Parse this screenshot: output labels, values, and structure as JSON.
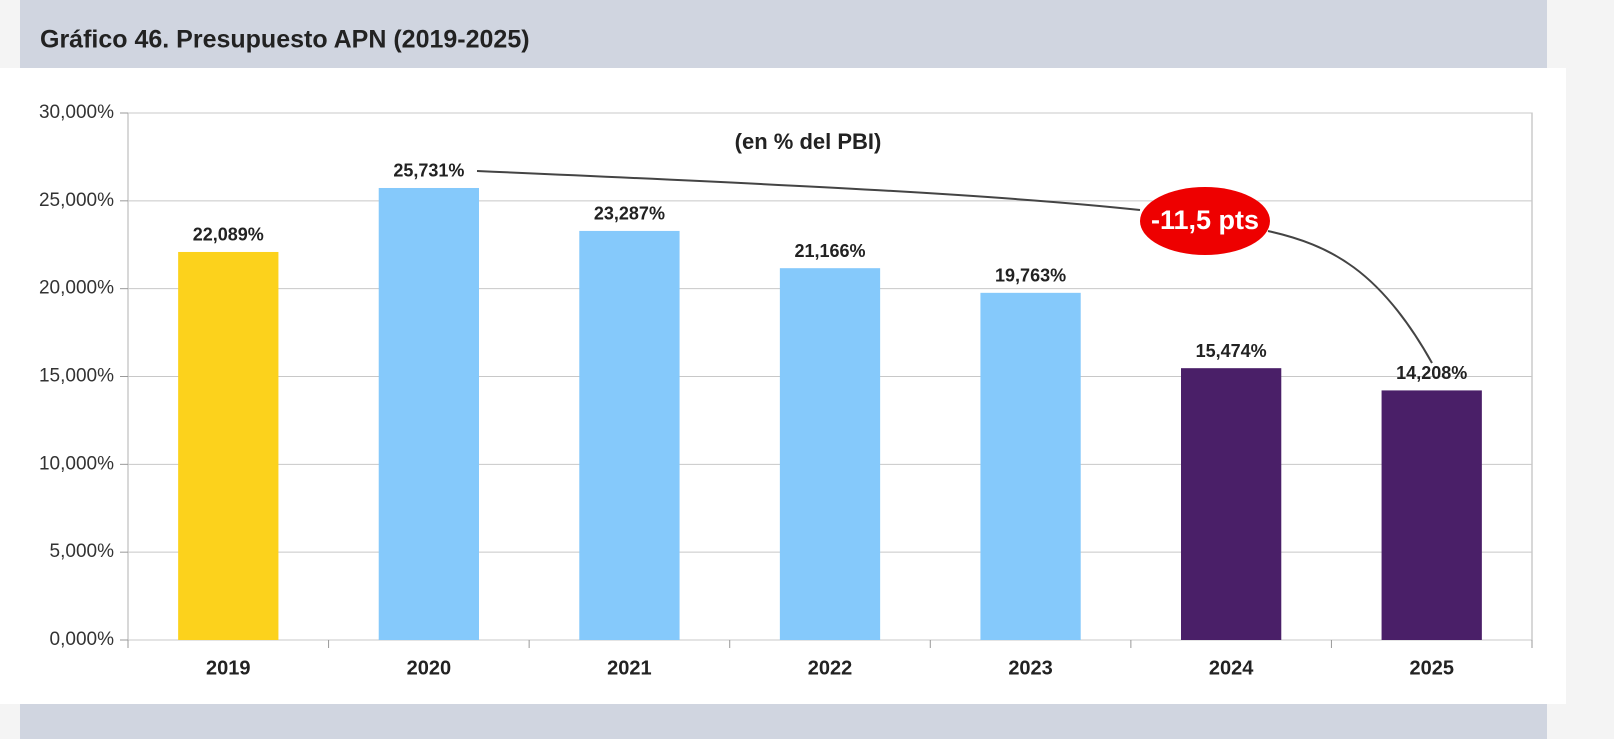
{
  "chart_data": {
    "type": "bar",
    "title": "Gráfico 46. Presupuesto APN (2019-2025)",
    "subtitle": "(en % del PBI)",
    "annotation": "-11,5 pts",
    "categories": [
      "2019",
      "2020",
      "2021",
      "2022",
      "2023",
      "2024",
      "2025"
    ],
    "values": [
      22.089,
      25.731,
      23.287,
      21.166,
      19.763,
      15.474,
      14.208
    ],
    "value_labels": [
      "22,089%",
      "25,731%",
      "23,287%",
      "21,166%",
      "19,763%",
      "15,474%",
      "14,208%"
    ],
    "colors": [
      "#fcd21c",
      "#85c9fb",
      "#85c9fb",
      "#85c9fb",
      "#85c9fb",
      "#4a1f68",
      "#4a1f68"
    ],
    "ylim": [
      0,
      30
    ],
    "yticks": [
      {
        "value": 0,
        "label": "0,000%"
      },
      {
        "value": 5,
        "label": "5,000%"
      },
      {
        "value": 10,
        "label": "10,000%"
      },
      {
        "value": 15,
        "label": "15,000%"
      },
      {
        "value": 20,
        "label": "20,000%"
      },
      {
        "value": 25,
        "label": "25,000%"
      },
      {
        "value": 30,
        "label": "30,000%"
      }
    ],
    "grid": true
  }
}
